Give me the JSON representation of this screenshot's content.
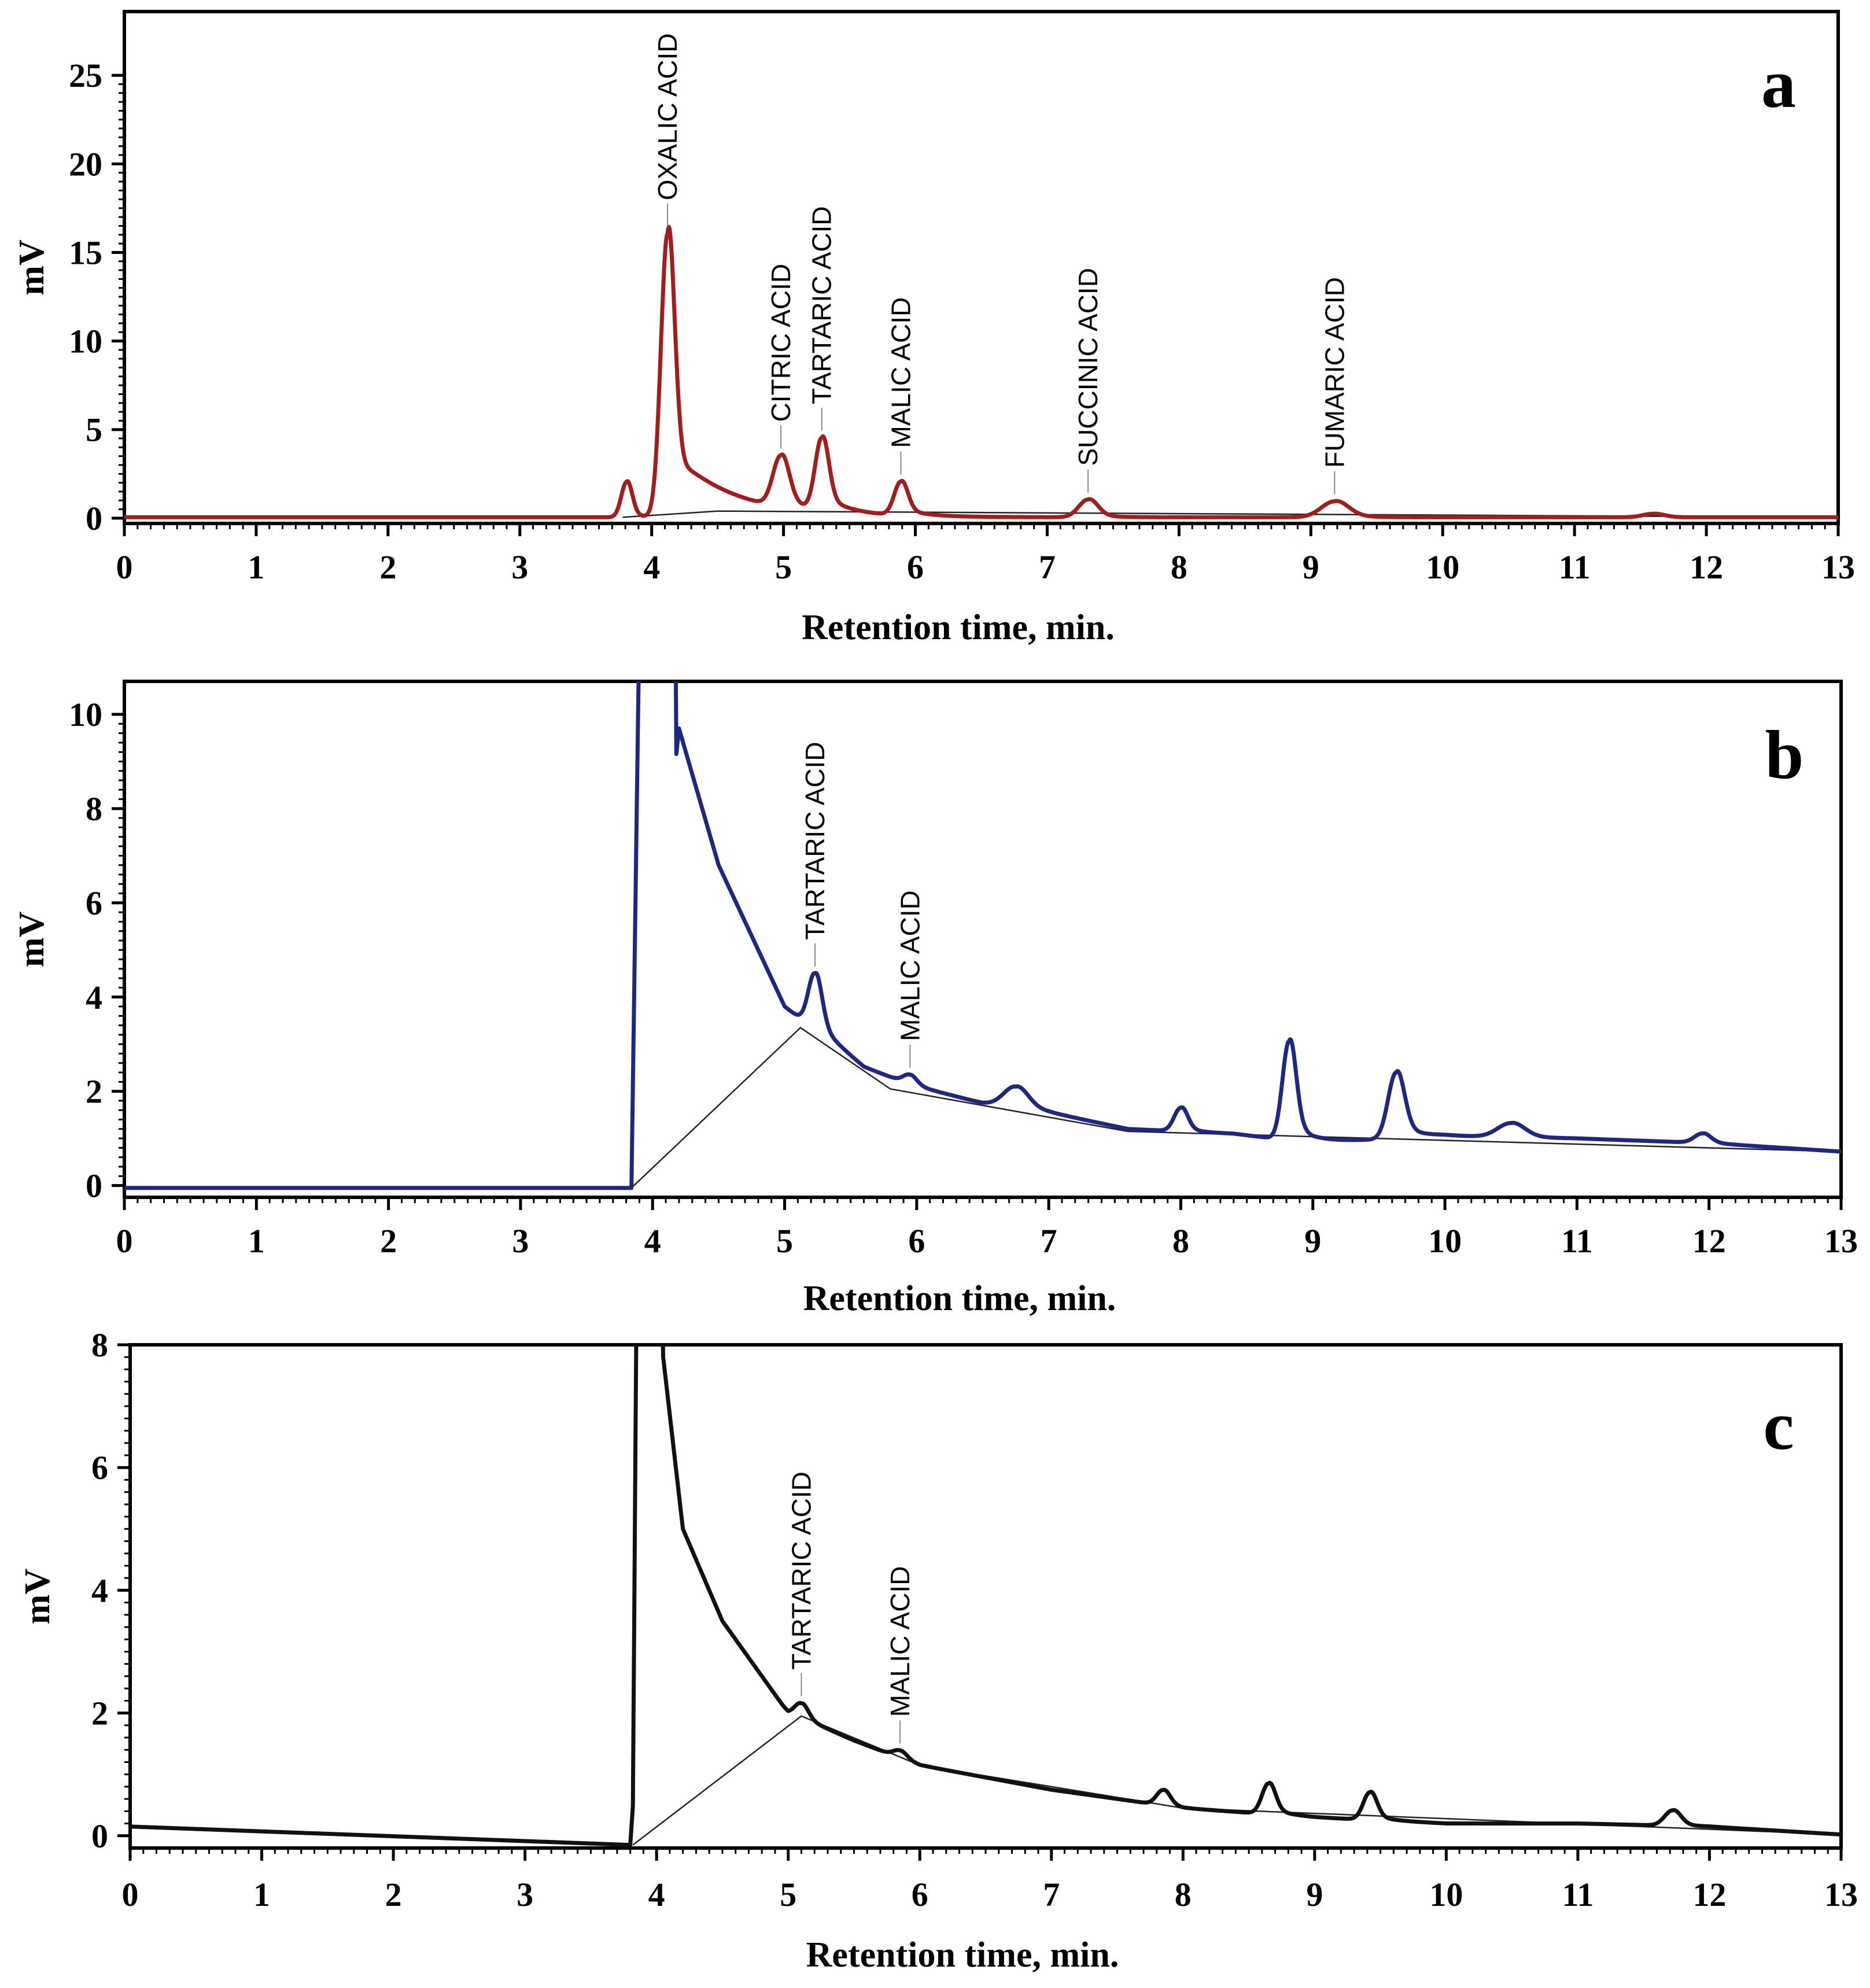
{
  "chart_data": [
    {
      "type": "line",
      "panel": "a",
      "xlabel": "Retention time, min.",
      "ylabel": "mV",
      "xlim": [
        0,
        13
      ],
      "ylim": [
        -0.3,
        28.6
      ],
      "xticks": [
        0,
        1,
        2,
        3,
        4,
        5,
        6,
        7,
        8,
        9,
        10,
        11,
        12,
        13
      ],
      "yticks": [
        0,
        5,
        10,
        15,
        20,
        25
      ],
      "color": "#a01e1e",
      "baseline": 0.05,
      "drift": [
        [
          0,
          0.05
        ],
        [
          13,
          0.05
        ]
      ],
      "peaks": [
        {
          "rt": 3.81,
          "height": 2.0,
          "width": 0.04,
          "tail": 0.02
        },
        {
          "rt": 4.12,
          "height": 16.0,
          "width": 0.05,
          "tail": 0.15,
          "label": "OXALIC ACID"
        },
        {
          "rt": 4.98,
          "height": 2.9,
          "width": 0.06,
          "tail": 0.05,
          "label": "CITRIC ACID"
        },
        {
          "rt": 5.29,
          "height": 4.1,
          "width": 0.05,
          "tail": 0.06,
          "label": "TARTARIC ACID"
        },
        {
          "rt": 5.89,
          "height": 1.9,
          "width": 0.05,
          "tail": 0.05,
          "label": "MALIC ACID"
        },
        {
          "rt": 7.31,
          "height": 1.0,
          "width": 0.07,
          "tail": 0.04,
          "label": "SUCCINIC ACID"
        },
        {
          "rt": 9.18,
          "height": 0.9,
          "width": 0.1,
          "tail": 0.05,
          "label": "FUMARIC ACID"
        },
        {
          "rt": 11.6,
          "height": 0.2,
          "width": 0.08,
          "tail": 0.02
        }
      ],
      "integration_baselines": [
        [
          [
            3.78,
            0.05
          ],
          [
            4.5,
            0.4
          ],
          [
            13.0,
            0.05
          ]
        ]
      ]
    },
    {
      "type": "line",
      "panel": "b",
      "xlabel": "Retention time, min.",
      "ylabel": "mV",
      "xlim": [
        0,
        13
      ],
      "ylim": [
        -0.25,
        10.7
      ],
      "xticks": [
        0,
        1,
        2,
        3,
        4,
        5,
        6,
        7,
        8,
        9,
        10,
        11,
        12,
        13
      ],
      "yticks": [
        0,
        2,
        4,
        6,
        8,
        10
      ],
      "color": "#1e2880",
      "baseline": -0.05,
      "step_rise": {
        "t0": 3.84,
        "t1": 3.9,
        "t_decay": 4.18,
        "amp": 12.0
      },
      "drift": [
        [
          0,
          -0.05
        ],
        [
          3.84,
          -0.05
        ],
        [
          4.2,
          9.7
        ],
        [
          4.5,
          6.8
        ],
        [
          5.0,
          3.8
        ],
        [
          5.6,
          2.5
        ],
        [
          6.0,
          2.1
        ],
        [
          6.5,
          1.75
        ],
        [
          7.0,
          1.55
        ],
        [
          7.6,
          1.2
        ],
        [
          8.4,
          1.1
        ],
        [
          9.0,
          0.9
        ],
        [
          10.0,
          1.05
        ],
        [
          11.0,
          1.0
        ],
        [
          12.0,
          0.9
        ],
        [
          13.0,
          0.72
        ]
      ],
      "peaks": [
        {
          "rt": 5.23,
          "height": 1.2,
          "width": 0.05,
          "tail": 0.05,
          "label": "TARTARIC ACID"
        },
        {
          "rt": 5.95,
          "height": 0.2,
          "width": 0.05,
          "tail": 0.03,
          "label": "MALIC ACID"
        },
        {
          "rt": 6.75,
          "height": 0.45,
          "width": 0.09,
          "tail": 0.05
        },
        {
          "rt": 8.0,
          "height": 0.5,
          "width": 0.05,
          "tail": 0.03
        },
        {
          "rt": 8.82,
          "height": 2.1,
          "width": 0.05,
          "tail": 0.05
        },
        {
          "rt": 9.63,
          "height": 1.4,
          "width": 0.06,
          "tail": 0.05
        },
        {
          "rt": 10.5,
          "height": 0.3,
          "width": 0.1,
          "tail": 0.04
        },
        {
          "rt": 11.95,
          "height": 0.2,
          "width": 0.06,
          "tail": 0.03
        }
      ],
      "integration_baselines": [
        [
          [
            3.84,
            -0.05
          ],
          [
            5.12,
            3.35
          ],
          [
            5.8,
            2.05
          ],
          [
            7.6,
            1.15
          ],
          [
            13.0,
            0.72
          ]
        ]
      ]
    },
    {
      "type": "line",
      "panel": "c",
      "xlabel": "Retention time, min.",
      "ylabel": "mV",
      "xlim": [
        0,
        13
      ],
      "ylim": [
        -0.2,
        8.0
      ],
      "xticks": [
        0,
        1,
        2,
        3,
        4,
        5,
        6,
        7,
        8,
        9,
        10,
        11,
        12,
        13
      ],
      "yticks": [
        0,
        2,
        4,
        6,
        8
      ],
      "color": "#111111",
      "baseline": 0.15,
      "step_rise": {
        "t0": 3.82,
        "t1": 3.85,
        "t_decay": 4.05,
        "amp": 9.0
      },
      "drift": [
        [
          0,
          0.15
        ],
        [
          3.8,
          -0.15
        ],
        [
          4.05,
          7.8
        ],
        [
          4.2,
          5.0
        ],
        [
          4.5,
          3.5
        ],
        [
          5.0,
          2.0
        ],
        [
          5.5,
          1.55
        ],
        [
          6.0,
          1.15
        ],
        [
          7.0,
          0.75
        ],
        [
          8.0,
          0.45
        ],
        [
          9.0,
          0.3
        ],
        [
          10.0,
          0.2
        ],
        [
          11.0,
          0.2
        ],
        [
          12.0,
          0.15
        ],
        [
          13.0,
          0.02
        ]
      ],
      "peaks": [
        {
          "rt": 5.1,
          "height": 0.25,
          "width": 0.05,
          "tail": 0.04,
          "label": "TARTARIC ACID"
        },
        {
          "rt": 5.85,
          "height": 0.12,
          "width": 0.05,
          "tail": 0.03,
          "label": "MALIC ACID"
        },
        {
          "rt": 7.85,
          "height": 0.25,
          "width": 0.05,
          "tail": 0.03
        },
        {
          "rt": 8.65,
          "height": 0.5,
          "width": 0.05,
          "tail": 0.04
        },
        {
          "rt": 9.42,
          "height": 0.45,
          "width": 0.05,
          "tail": 0.04
        },
        {
          "rt": 11.72,
          "height": 0.25,
          "width": 0.06,
          "tail": 0.03
        }
      ],
      "integration_baselines": [
        [
          [
            3.82,
            -0.15
          ],
          [
            5.1,
            1.95
          ],
          [
            6.0,
            1.15
          ],
          [
            8.0,
            0.45
          ],
          [
            13.0,
            0.02
          ]
        ]
      ]
    }
  ]
}
